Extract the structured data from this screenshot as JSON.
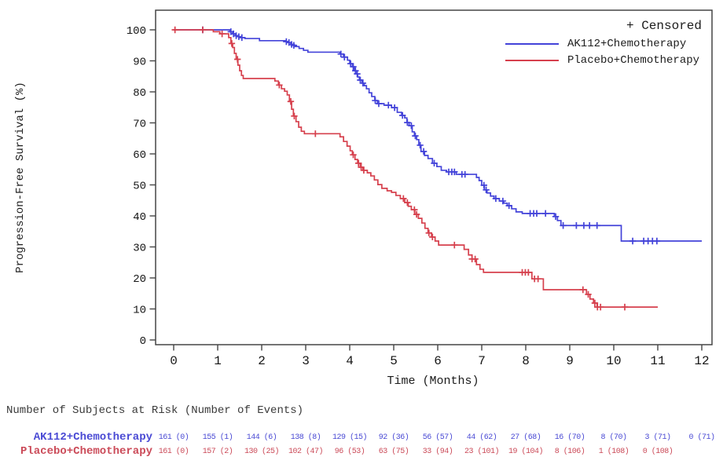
{
  "chart_data": {
    "type": "line",
    "subtype": "kaplan-meier-step-plot",
    "title": "",
    "xlabel": "Time (Months)",
    "ylabel": "Progression-Free Survival (%)",
    "xlim": [
      0,
      12
    ],
    "ylim": [
      0,
      100
    ],
    "xticks": [
      0,
      1,
      2,
      3,
      4,
      5,
      6,
      7,
      8,
      9,
      10,
      11,
      12
    ],
    "yticks": [
      0,
      10,
      20,
      30,
      40,
      50,
      60,
      70,
      80,
      90,
      100
    ],
    "grid": false,
    "legend_position": "top-right",
    "censored_marker_label": "+ Censored",
    "frame_color": "#454545",
    "series": [
      {
        "name": "AK112+Chemotherapy",
        "color": "#4343d9",
        "end_time": 12.0,
        "steps": [
          [
            0,
            100
          ],
          [
            1.28,
            99.4
          ],
          [
            1.34,
            98.7
          ],
          [
            1.4,
            98.1
          ],
          [
            1.46,
            97.8
          ],
          [
            1.52,
            97.5
          ],
          [
            1.62,
            97.2
          ],
          [
            1.95,
            96.5
          ],
          [
            2.55,
            96.2
          ],
          [
            2.6,
            95.9
          ],
          [
            2.66,
            95.3
          ],
          [
            2.71,
            95.0
          ],
          [
            2.76,
            94.6
          ],
          [
            2.85,
            94.0
          ],
          [
            2.95,
            93.4
          ],
          [
            3.05,
            92.8
          ],
          [
            3.78,
            92.2
          ],
          [
            3.86,
            91.2
          ],
          [
            3.95,
            90.2
          ],
          [
            4.0,
            89.1
          ],
          [
            4.06,
            88.1
          ],
          [
            4.1,
            86.8
          ],
          [
            4.14,
            85.8
          ],
          [
            4.18,
            84.8
          ],
          [
            4.22,
            83.8
          ],
          [
            4.28,
            82.8
          ],
          [
            4.33,
            82.0
          ],
          [
            4.38,
            81.0
          ],
          [
            4.44,
            79.7
          ],
          [
            4.5,
            78.5
          ],
          [
            4.57,
            77.2
          ],
          [
            4.63,
            76.2
          ],
          [
            4.78,
            75.7
          ],
          [
            4.95,
            74.9
          ],
          [
            5.08,
            73.4
          ],
          [
            5.18,
            72.4
          ],
          [
            5.25,
            71.6
          ],
          [
            5.3,
            70.1
          ],
          [
            5.35,
            69.1
          ],
          [
            5.42,
            67.1
          ],
          [
            5.47,
            65.8
          ],
          [
            5.52,
            64.6
          ],
          [
            5.57,
            62.8
          ],
          [
            5.62,
            60.8
          ],
          [
            5.7,
            59.5
          ],
          [
            5.78,
            58.5
          ],
          [
            5.88,
            57.0
          ],
          [
            5.98,
            55.9
          ],
          [
            6.08,
            54.7
          ],
          [
            6.2,
            54.2
          ],
          [
            6.42,
            53.4
          ],
          [
            6.88,
            52.4
          ],
          [
            6.94,
            51.4
          ],
          [
            7.0,
            49.9
          ],
          [
            7.06,
            48.4
          ],
          [
            7.12,
            47.4
          ],
          [
            7.2,
            46.4
          ],
          [
            7.28,
            45.6
          ],
          [
            7.4,
            44.8
          ],
          [
            7.5,
            44.1
          ],
          [
            7.58,
            43.3
          ],
          [
            7.68,
            42.3
          ],
          [
            7.78,
            41.3
          ],
          [
            7.92,
            40.8
          ],
          [
            8.65,
            39.8
          ],
          [
            8.72,
            38.5
          ],
          [
            8.8,
            36.9
          ],
          [
            10.17,
            31.9
          ]
        ],
        "censor_times": [
          0.66,
          1.3,
          1.36,
          1.42,
          1.48,
          1.55,
          2.56,
          2.62,
          2.68,
          2.73,
          3.8,
          3.88,
          4.02,
          4.08,
          4.13,
          4.17,
          4.24,
          4.3,
          4.58,
          4.66,
          4.88,
          5.02,
          5.2,
          5.31,
          5.4,
          5.49,
          5.6,
          5.68,
          5.92,
          6.25,
          6.32,
          6.38,
          6.55,
          6.62,
          7.05,
          7.1,
          7.32,
          7.48,
          7.62,
          8.1,
          8.18,
          8.25,
          8.45,
          8.68,
          8.85,
          9.15,
          9.32,
          9.45,
          9.62,
          10.43,
          10.68,
          10.78,
          10.88,
          10.98
        ]
      },
      {
        "name": "Placebo+Chemotherapy",
        "color": "#d6404d",
        "end_time": 11.0,
        "steps": [
          [
            0,
            100
          ],
          [
            0.9,
            99.4
          ],
          [
            1.05,
            98.7
          ],
          [
            1.25,
            97.5
          ],
          [
            1.3,
            95.6
          ],
          [
            1.34,
            94.3
          ],
          [
            1.38,
            92.4
          ],
          [
            1.42,
            90.5
          ],
          [
            1.46,
            88.6
          ],
          [
            1.5,
            86.8
          ],
          [
            1.54,
            85.3
          ],
          [
            1.58,
            84.3
          ],
          [
            2.3,
            83.5
          ],
          [
            2.38,
            82.2
          ],
          [
            2.45,
            81.0
          ],
          [
            2.52,
            80.2
          ],
          [
            2.58,
            79.0
          ],
          [
            2.63,
            76.9
          ],
          [
            2.68,
            74.4
          ],
          [
            2.72,
            72.2
          ],
          [
            2.78,
            70.4
          ],
          [
            2.84,
            68.6
          ],
          [
            2.9,
            67.3
          ],
          [
            2.97,
            66.5
          ],
          [
            3.78,
            65.5
          ],
          [
            3.86,
            64.0
          ],
          [
            3.94,
            62.5
          ],
          [
            4.01,
            61.0
          ],
          [
            4.06,
            59.7
          ],
          [
            4.12,
            58.2
          ],
          [
            4.18,
            57.0
          ],
          [
            4.24,
            55.7
          ],
          [
            4.3,
            54.7
          ],
          [
            4.4,
            53.9
          ],
          [
            4.48,
            52.9
          ],
          [
            4.56,
            51.6
          ],
          [
            4.64,
            50.1
          ],
          [
            4.73,
            48.9
          ],
          [
            4.85,
            48.1
          ],
          [
            4.95,
            47.6
          ],
          [
            5.05,
            46.6
          ],
          [
            5.15,
            45.6
          ],
          [
            5.25,
            44.3
          ],
          [
            5.33,
            43.1
          ],
          [
            5.4,
            42.0
          ],
          [
            5.48,
            40.5
          ],
          [
            5.56,
            39.2
          ],
          [
            5.64,
            37.7
          ],
          [
            5.71,
            36.0
          ],
          [
            5.78,
            34.5
          ],
          [
            5.86,
            33.2
          ],
          [
            5.94,
            31.9
          ],
          [
            6.02,
            30.6
          ],
          [
            6.6,
            29.2
          ],
          [
            6.7,
            27.4
          ],
          [
            6.78,
            26.1
          ],
          [
            6.88,
            24.3
          ],
          [
            6.96,
            22.8
          ],
          [
            7.04,
            21.8
          ],
          [
            8.14,
            19.7
          ],
          [
            8.4,
            16.2
          ],
          [
            9.38,
            14.7
          ],
          [
            9.46,
            13.2
          ],
          [
            9.54,
            11.9
          ],
          [
            9.62,
            10.6
          ]
        ],
        "censor_times": [
          0.03,
          0.66,
          1.1,
          1.32,
          1.45,
          2.4,
          2.66,
          2.74,
          3.22,
          4.08,
          4.2,
          4.26,
          4.32,
          5.22,
          5.31,
          5.47,
          5.52,
          5.8,
          5.88,
          6.38,
          6.78,
          6.85,
          7.92,
          7.99,
          8.06,
          8.2,
          8.28,
          9.3,
          9.42,
          9.57,
          9.63,
          9.7,
          10.25
        ]
      }
    ]
  },
  "risk_table": {
    "title": "Number of Subjects at Risk (Number of Events)",
    "time_points": [
      0,
      1,
      2,
      3,
      4,
      5,
      6,
      7,
      8,
      9,
      10,
      11,
      12
    ],
    "rows": [
      {
        "name": "AK112+Chemotherapy",
        "color": "#4a4ad4",
        "values": [
          "161 (0)",
          "155 (1)",
          "144 (6)",
          "138 (8)",
          "129 (15)",
          "92 (36)",
          "56 (57)",
          "44 (62)",
          "27 (68)",
          "16 (70)",
          "8 (70)",
          "3 (71)",
          "0 (71)"
        ]
      },
      {
        "name": "Placebo+Chemotherapy",
        "color": "#cb4b59",
        "values": [
          "161 (0)",
          "157 (2)",
          "130 (25)",
          "102 (47)",
          "96 (53)",
          "63 (75)",
          "33 (94)",
          "23 (101)",
          "19 (104)",
          "8 (106)",
          "1 (108)",
          "0 (108)"
        ]
      }
    ]
  }
}
